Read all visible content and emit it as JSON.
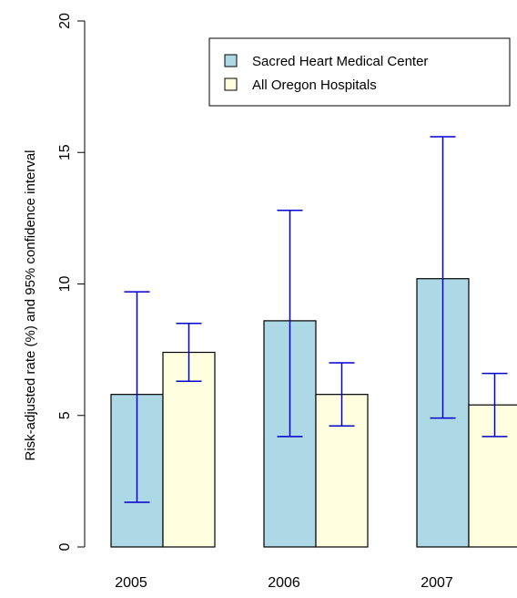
{
  "chart_data": {
    "type": "bar",
    "title": "",
    "xlabel": "",
    "ylabel": "Risk-adjusted rate (%) and 95% confidence interval",
    "ylim": [
      0,
      20
    ],
    "yticks": [
      0,
      5,
      10,
      15,
      20
    ],
    "categories": [
      "2005",
      "2006",
      "2007"
    ],
    "series": [
      {
        "name": "Sacred Heart Medical Center",
        "color": "#add8e6",
        "values": [
          5.8,
          8.6,
          10.2
        ],
        "ci_low": [
          1.7,
          4.2,
          4.9
        ],
        "ci_high": [
          9.7,
          12.8,
          15.6
        ]
      },
      {
        "name": "All Oregon Hospitals",
        "color": "#ffffe0",
        "values": [
          7.4,
          5.8,
          5.4
        ],
        "ci_low": [
          6.3,
          4.6,
          4.2
        ],
        "ci_high": [
          8.5,
          7.0,
          6.6
        ]
      }
    ],
    "errorbar_color": "#0000cc",
    "legend_position": "top-right",
    "grid": false
  }
}
